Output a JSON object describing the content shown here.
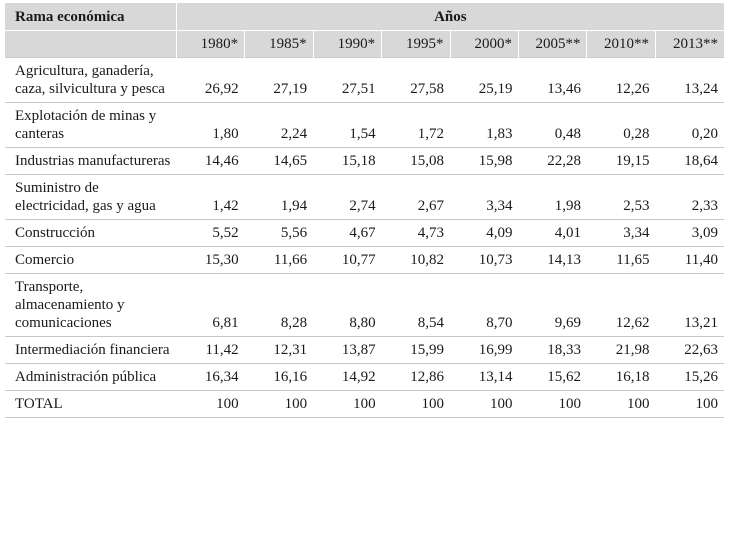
{
  "header": {
    "rama_label": "Rama económica",
    "anos_label": "Años",
    "years": [
      "1980*",
      "1985*",
      "1990*",
      "1995*",
      "2000*",
      "2005**",
      "2010**",
      "2013**"
    ]
  },
  "rows": [
    {
      "label": "Agricultura, ganadería, caza, silvicultura y pesca",
      "values": [
        "26,92",
        "27,19",
        "27,51",
        "27,58",
        "25,19",
        "13,46",
        "12,26",
        "13,24"
      ]
    },
    {
      "label": "Explotación de minas y canteras",
      "values": [
        "1,80",
        "2,24",
        "1,54",
        "1,72",
        "1,83",
        "0,48",
        "0,28",
        "0,20"
      ]
    },
    {
      "label": "Industrias manufactureras",
      "values": [
        "14,46",
        "14,65",
        "15,18",
        "15,08",
        "15,98",
        "22,28",
        "19,15",
        "18,64"
      ]
    },
    {
      "label": "Suministro de electricidad, gas y agua",
      "values": [
        "1,42",
        "1,94",
        "2,74",
        "2,67",
        "3,34",
        "1,98",
        "2,53",
        "2,33"
      ]
    },
    {
      "label": "Construcción",
      "values": [
        "5,52",
        "5,56",
        "4,67",
        "4,73",
        "4,09",
        "4,01",
        "3,34",
        "3,09"
      ]
    },
    {
      "label": "Comercio",
      "values": [
        "15,30",
        "11,66",
        "10,77",
        "10,82",
        "10,73",
        "14,13",
        "11,65",
        "11,40"
      ]
    },
    {
      "label": "Transporte, almacenamiento y comunicaciones",
      "values": [
        "6,81",
        "8,28",
        "8,80",
        "8,54",
        "8,70",
        "9,69",
        "12,62",
        "13,21"
      ]
    },
    {
      "label": "Intermediación financiera",
      "values": [
        "11,42",
        "12,31",
        "13,87",
        "15,99",
        "16,99",
        "18,33",
        "21,98",
        "22,63"
      ]
    },
    {
      "label": "Administración pública",
      "values": [
        "16,34",
        "16,16",
        "14,92",
        "12,86",
        "13,14",
        "15,62",
        "16,18",
        "15,26"
      ]
    },
    {
      "label": "TOTAL",
      "values": [
        "100",
        "100",
        "100",
        "100",
        "100",
        "100",
        "100",
        "100"
      ]
    }
  ]
}
